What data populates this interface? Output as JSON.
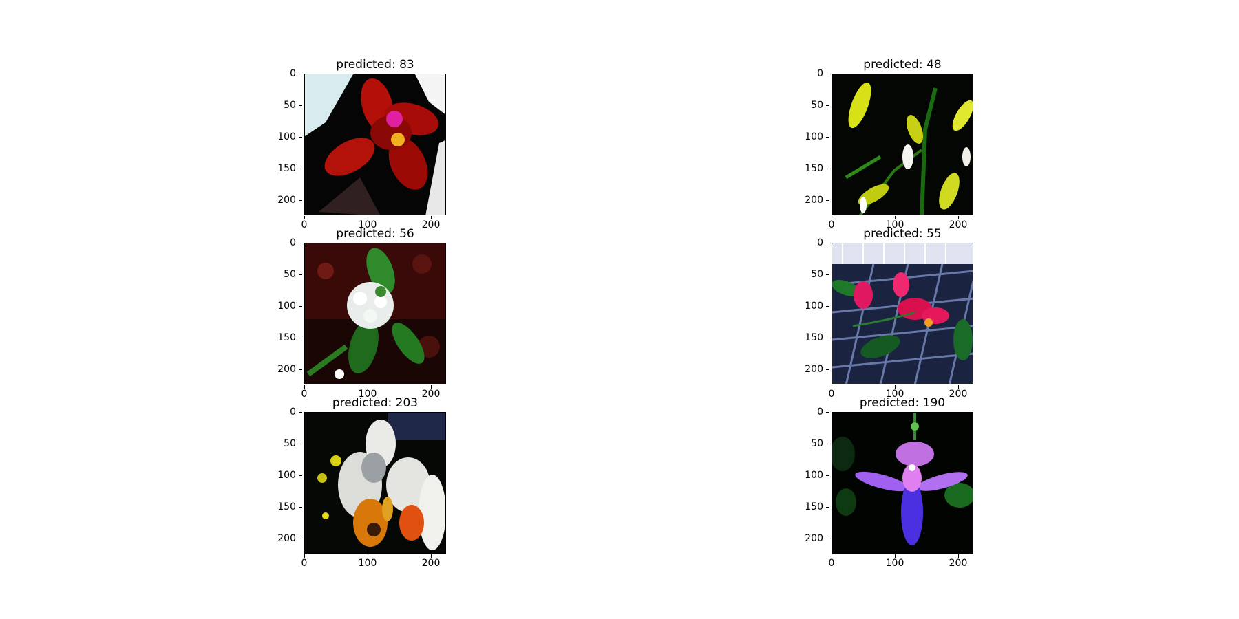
{
  "figure": {
    "panels": [
      {
        "title": "predicted: 83",
        "image": "red-orchid-icon"
      },
      {
        "title": "predicted: 48",
        "image": "yellow-orchid-spray-icon"
      },
      {
        "title": "predicted: 56",
        "image": "white-flower-cluster-icon"
      },
      {
        "title": "predicted: 55",
        "image": "pink-orchid-on-mesh-icon"
      },
      {
        "title": "predicted: 203",
        "image": "white-phalaenopsis-icon"
      },
      {
        "title": "predicted: 190",
        "image": "purple-orchid-icon"
      }
    ],
    "yticks": [
      "0",
      "50",
      "100",
      "150",
      "200"
    ],
    "xticks": [
      "0",
      "100",
      "200"
    ]
  }
}
